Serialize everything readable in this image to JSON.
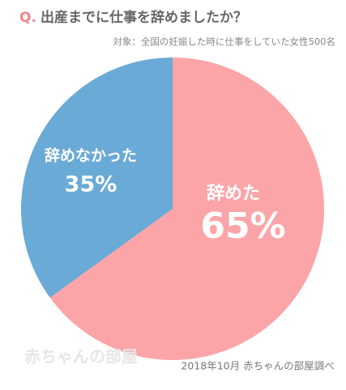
{
  "chart_data": {
    "type": "pie",
    "title_marker": "Q.",
    "title": "出産までに仕事を辞めましたか？",
    "subtitle": "対象：全国の妊娠した時に仕事をしていた女性500名",
    "categories": [
      "辞めた",
      "辞めなかった"
    ],
    "values": [
      65,
      35
    ],
    "value_labels": [
      "65%",
      "35%"
    ],
    "colors": [
      "#fca5a9",
      "#6aaad6"
    ],
    "source": "2018年10月 赤ちゃんの部屋調べ",
    "logo": "赤ちゃんの部屋"
  }
}
